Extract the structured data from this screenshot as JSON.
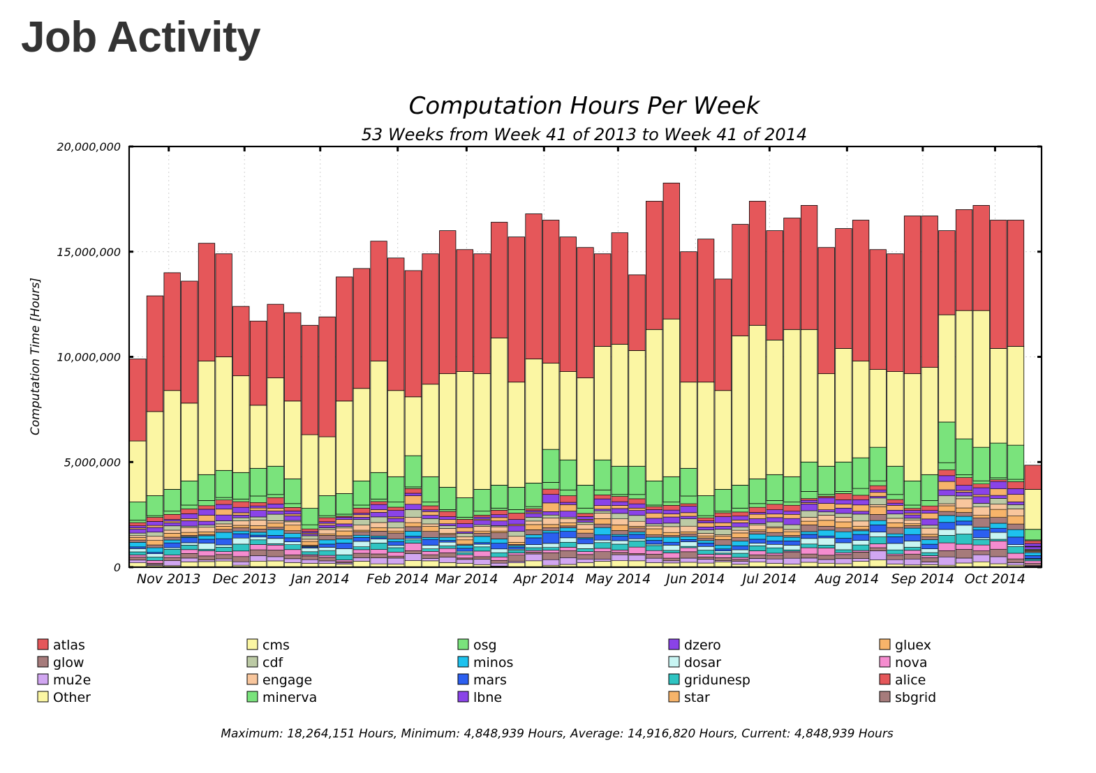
{
  "page": {
    "heading": "Job Activity"
  },
  "chart_data": {
    "type": "bar",
    "stacked": true,
    "title": "Computation Hours Per Week",
    "subtitle": "53 Weeks from Week 41 of 2013 to Week 41 of 2014",
    "ylabel": "Computation Time [Hours]",
    "xlabel": "",
    "ylim": [
      0,
      20000000
    ],
    "yticks": [
      {
        "value": 0,
        "label": "0"
      },
      {
        "value": 5000000,
        "label": "5,000,000"
      },
      {
        "value": 10000000,
        "label": "10,000,000"
      },
      {
        "value": 15000000,
        "label": "15,000,000"
      },
      {
        "value": 20000000,
        "label": "20,000,000"
      }
    ],
    "xticks": [
      {
        "index": 1.8,
        "label": "Nov 2013"
      },
      {
        "index": 6.2,
        "label": "Dec 2013"
      },
      {
        "index": 10.6,
        "label": "Jan 2014"
      },
      {
        "index": 15.1,
        "label": "Feb 2014"
      },
      {
        "index": 19.1,
        "label": "Mar 2014"
      },
      {
        "index": 23.6,
        "label": "Apr 2014"
      },
      {
        "index": 27.9,
        "label": "May 2014"
      },
      {
        "index": 32.4,
        "label": "Jun 2014"
      },
      {
        "index": 36.7,
        "label": "Jul 2014"
      },
      {
        "index": 41.2,
        "label": "Aug 2014"
      },
      {
        "index": 45.6,
        "label": "Sep 2014"
      },
      {
        "index": 49.8,
        "label": "Oct 2014"
      }
    ],
    "grid": true,
    "legend_position": "bottom",
    "weeks": 53,
    "totals": [
      9900000,
      12900000,
      14000000,
      13600000,
      15400000,
      14900000,
      12400000,
      11700000,
      12500000,
      12100000,
      11500000,
      11900000,
      13800000,
      14200000,
      15500000,
      14700000,
      14100000,
      14900000,
      16000000,
      15100000,
      14900000,
      16400000,
      15700000,
      16800000,
      16500000,
      15700000,
      15200000,
      14900000,
      15900000,
      13900000,
      17400000,
      18264151,
      15000000,
      15600000,
      13700000,
      16300000,
      17400000,
      16000000,
      16600000,
      17200000,
      15200000,
      16100000,
      16500000,
      15100000,
      14900000,
      16700000,
      16700000,
      16000000,
      17000000,
      17200000,
      16500000,
      16500000,
      4848939
    ],
    "cms_top": [
      6000000,
      7400000,
      8400000,
      7800000,
      9800000,
      10000000,
      9100000,
      7700000,
      9000000,
      7900000,
      6300000,
      6200000,
      7900000,
      8500000,
      9800000,
      8400000,
      8100000,
      8700000,
      9200000,
      9300000,
      9200000,
      10900000,
      8800000,
      9900000,
      9700000,
      9300000,
      9000000,
      10500000,
      10600000,
      10300000,
      11300000,
      11800000,
      8800000,
      8800000,
      8400000,
      11000000,
      11500000,
      10800000,
      11300000,
      11300000,
      9200000,
      10400000,
      9800000,
      9400000,
      9300000,
      9200000,
      9500000,
      12000000,
      12200000,
      12200000,
      10400000,
      10500000,
      3700000
    ],
    "osg_top": [
      3100000,
      3400000,
      3700000,
      4100000,
      4400000,
      4600000,
      4500000,
      4700000,
      4800000,
      4200000,
      2800000,
      3400000,
      3500000,
      4100000,
      4500000,
      4300000,
      5300000,
      4300000,
      3800000,
      3300000,
      3700000,
      3900000,
      3800000,
      4000000,
      5600000,
      5100000,
      3900000,
      5100000,
      4800000,
      4800000,
      4100000,
      4300000,
      4700000,
      3400000,
      3700000,
      3900000,
      4200000,
      4400000,
      4300000,
      5000000,
      4800000,
      5000000,
      5200000,
      5700000,
      4800000,
      4100000,
      4400000,
      6900000,
      6100000,
      5700000,
      5900000,
      5800000,
      1800000
    ],
    "series_order_bottom_up": [
      "Other",
      "mu2e",
      "glow",
      "nova",
      "gridunesp",
      "dosar",
      "mars",
      "minos",
      "sbgrid",
      "star",
      "engage",
      "cdf",
      "lbne",
      "gluex",
      "dzero",
      "alice",
      "minerva",
      "osg",
      "cms",
      "atlas"
    ],
    "legend": [
      {
        "name": "atlas",
        "color": "#e5575a"
      },
      {
        "name": "cms",
        "color": "#fbf6a3"
      },
      {
        "name": "osg",
        "color": "#7ae37c"
      },
      {
        "name": "dzero",
        "color": "#8a43e8"
      },
      {
        "name": "gluex",
        "color": "#f7b46a"
      },
      {
        "name": "glow",
        "color": "#a67b7b"
      },
      {
        "name": "cdf",
        "color": "#bccaa5"
      },
      {
        "name": "minos",
        "color": "#1ec2ee"
      },
      {
        "name": "dosar",
        "color": "#c8f5f3"
      },
      {
        "name": "nova",
        "color": "#f58ccf"
      },
      {
        "name": "mu2e",
        "color": "#d1a6f1"
      },
      {
        "name": "engage",
        "color": "#f8c69d"
      },
      {
        "name": "mars",
        "color": "#2c5ff0"
      },
      {
        "name": "gridunesp",
        "color": "#2fc4c2"
      },
      {
        "name": "alice",
        "color": "#e5575a"
      },
      {
        "name": "Other",
        "color": "#fbf6a3"
      },
      {
        "name": "minerva",
        "color": "#7ae37c"
      },
      {
        "name": "lbne",
        "color": "#8a43e8"
      },
      {
        "name": "star",
        "color": "#f7b46a"
      },
      {
        "name": "sbgrid",
        "color": "#a67b7b"
      }
    ],
    "footer": "Maximum: 18,264,151 Hours, Minimum: 4,848,939 Hours, Average: 14,916,820 Hours, Current: 4,848,939 Hours"
  }
}
